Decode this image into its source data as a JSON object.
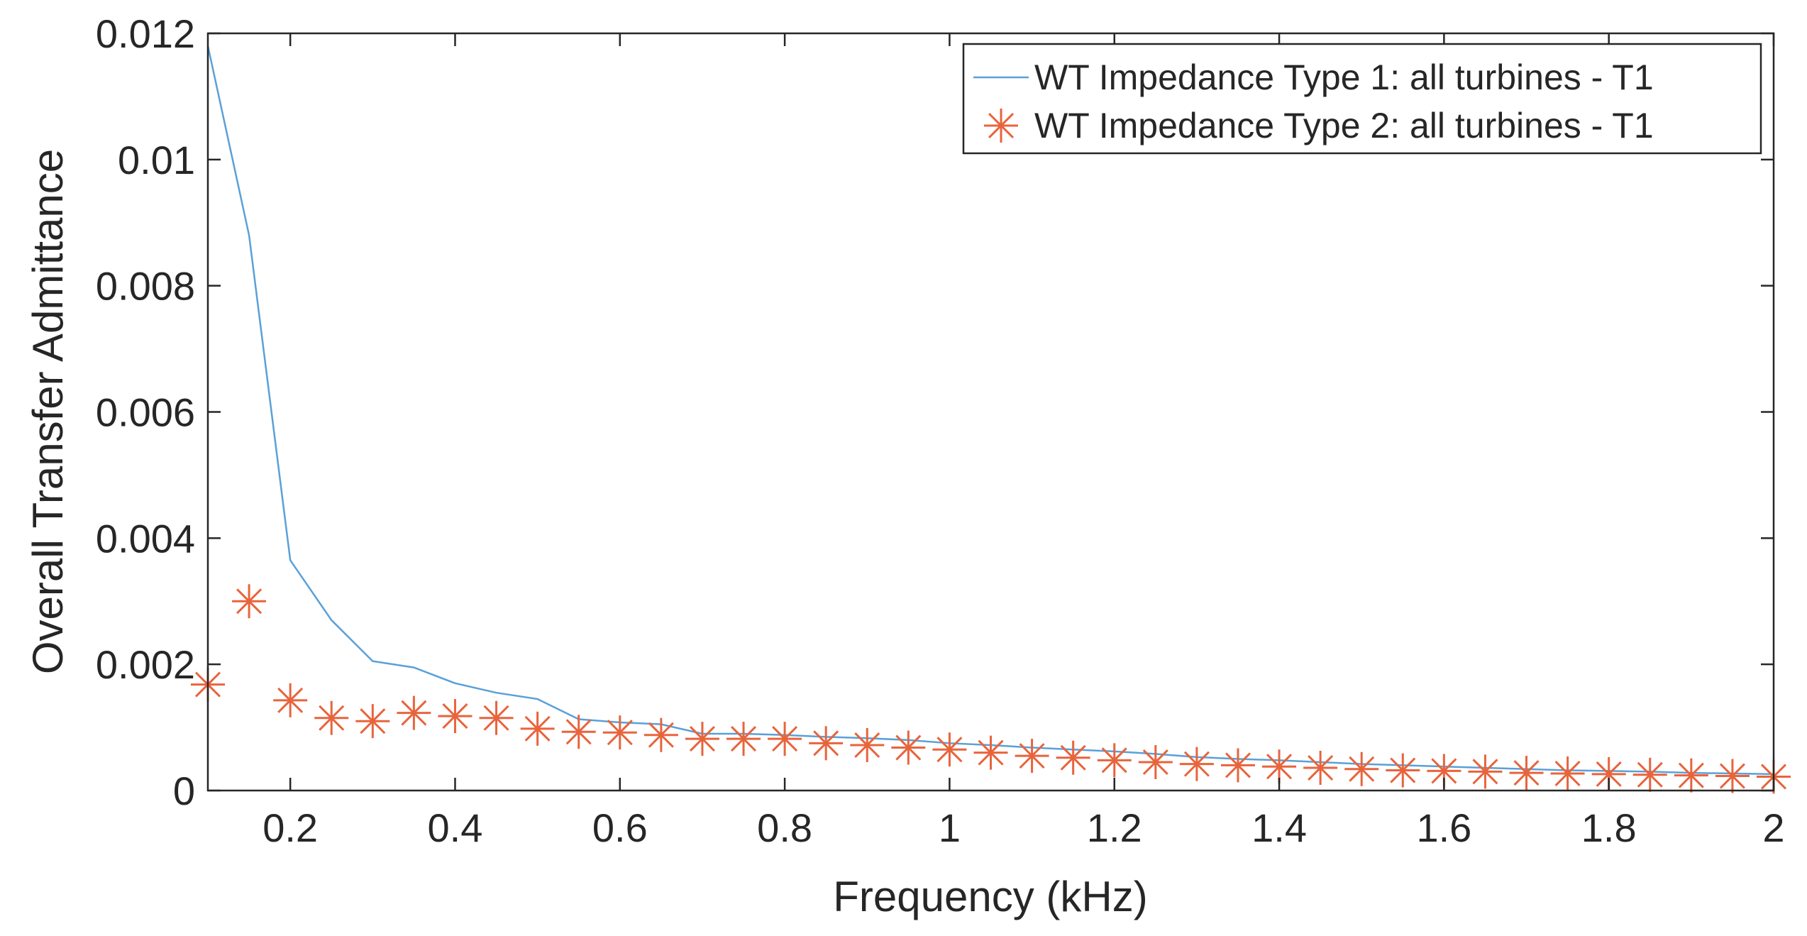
{
  "chart_data": {
    "type": "line",
    "title": "",
    "xlabel": "Frequency (kHz)",
    "ylabel": "Overall Transfer Admittance",
    "xlim": [
      0.1,
      2.0
    ],
    "ylim": [
      0,
      0.012
    ],
    "xticks": [
      0.2,
      0.4,
      0.6,
      0.8,
      1.0,
      1.2,
      1.4,
      1.6,
      1.8,
      2.0
    ],
    "xtick_labels": [
      "0.2",
      "0.4",
      "0.6",
      "0.8",
      "1",
      "1.2",
      "1.4",
      "1.6",
      "1.8",
      "2"
    ],
    "yticks": [
      0,
      0.002,
      0.004,
      0.006,
      0.008,
      0.01,
      0.012
    ],
    "ytick_labels": [
      "0",
      "0.002",
      "0.004",
      "0.006",
      "0.008",
      "0.01",
      "0.012"
    ],
    "legend_position": "top-right",
    "grid": false,
    "series": [
      {
        "name": "WT Impedance Type 1: all turbines - T1",
        "style": "line",
        "color": "#5aa0d8",
        "x": [
          0.1,
          0.15,
          0.2,
          0.25,
          0.3,
          0.35,
          0.4,
          0.45,
          0.5,
          0.55,
          0.6,
          0.65,
          0.7,
          0.75,
          0.8,
          0.85,
          0.9,
          0.95,
          1.0,
          1.05,
          1.1,
          1.15,
          1.2,
          1.25,
          1.3,
          1.35,
          1.4,
          1.45,
          1.5,
          1.55,
          1.6,
          1.65,
          1.7,
          1.75,
          1.8,
          1.85,
          1.9,
          1.95,
          2.0
        ],
        "values": [
          0.0118,
          0.0088,
          0.00365,
          0.0027,
          0.00205,
          0.00195,
          0.0017,
          0.00155,
          0.00145,
          0.00113,
          0.00108,
          0.00105,
          0.0009,
          0.0009,
          0.00088,
          0.00085,
          0.00083,
          0.0008,
          0.00075,
          0.00072,
          0.00068,
          0.00065,
          0.00062,
          0.00058,
          0.00053,
          0.0005,
          0.00048,
          0.00045,
          0.00042,
          0.0004,
          0.00038,
          0.00036,
          0.00034,
          0.00032,
          0.00031,
          0.0003,
          0.00028,
          0.00027,
          0.00026
        ]
      },
      {
        "name": "WT Impedance Type 2: all turbines - T1",
        "style": "marker",
        "marker": "asterisk",
        "color": "#e8643c",
        "x": [
          0.1,
          0.15,
          0.2,
          0.25,
          0.3,
          0.35,
          0.4,
          0.45,
          0.5,
          0.55,
          0.6,
          0.65,
          0.7,
          0.75,
          0.8,
          0.85,
          0.9,
          0.95,
          1.0,
          1.05,
          1.1,
          1.15,
          1.2,
          1.25,
          1.3,
          1.35,
          1.4,
          1.45,
          1.5,
          1.55,
          1.6,
          1.65,
          1.7,
          1.75,
          1.8,
          1.85,
          1.9,
          1.95,
          2.0
        ],
        "values": [
          0.00168,
          0.003,
          0.00143,
          0.00115,
          0.0011,
          0.00123,
          0.00118,
          0.00115,
          0.00098,
          0.00093,
          0.00092,
          0.00088,
          0.00082,
          0.00082,
          0.00082,
          0.00075,
          0.00072,
          0.00068,
          0.00065,
          0.0006,
          0.00055,
          0.00052,
          0.00048,
          0.00045,
          0.00042,
          0.0004,
          0.00038,
          0.00036,
          0.00034,
          0.00032,
          0.00031,
          0.0003,
          0.00028,
          0.00027,
          0.00026,
          0.00025,
          0.00024,
          0.00023,
          0.00022
        ]
      }
    ]
  }
}
